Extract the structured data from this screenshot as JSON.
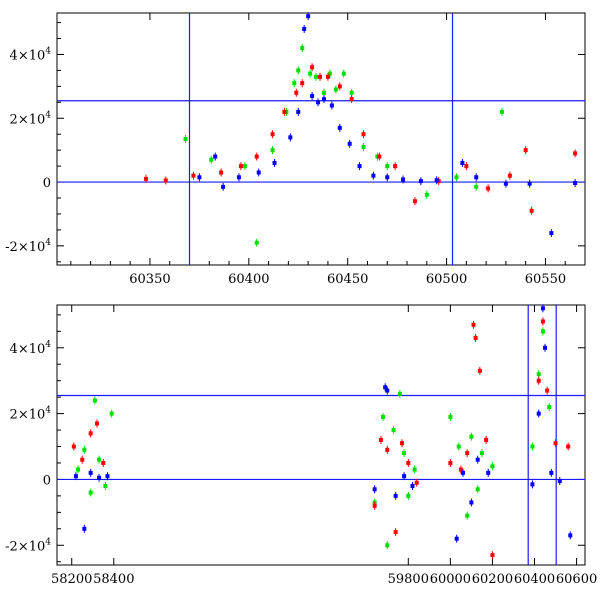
{
  "chart_data": [
    {
      "type": "scatter",
      "panel": "top",
      "xlim": [
        60303,
        60570
      ],
      "ylim": [
        -26000,
        53000
      ],
      "xticks": [
        60350,
        60400,
        60450,
        60500,
        60550
      ],
      "xtick_labels": [
        "60350",
        "60400",
        "60450",
        "60500",
        "60550"
      ],
      "yticks": [
        -20000,
        0,
        20000,
        40000
      ],
      "ytick_labels": [
        {
          "mant": "-2×10",
          "exp": "4"
        },
        {
          "mant": "0",
          "exp": ""
        },
        {
          "mant": "2×10",
          "exp": "4"
        },
        {
          "mant": "4×10",
          "exp": "4"
        }
      ],
      "hlines": [
        0,
        25500
      ],
      "vlines": [
        60370,
        60503
      ],
      "series_colors": [
        "#00e000",
        "#ff0000",
        "#0000ff"
      ],
      "series": [
        {
          "color": "#00e000",
          "x": [
            60368,
            60381,
            60398,
            60404,
            60412,
            60419,
            60423,
            60425,
            60427,
            60431,
            60434,
            60438,
            60441,
            60444,
            60448,
            60452,
            60458,
            60465,
            60470,
            60490,
            60505,
            60515,
            60528
          ],
          "y": [
            13500,
            7000,
            5000,
            -19000,
            10000,
            22000,
            31000,
            35000,
            42000,
            34000,
            33000,
            28000,
            34000,
            29000,
            34000,
            28000,
            11000,
            8000,
            5000,
            -4000,
            1500,
            -1500,
            22000
          ]
        },
        {
          "color": "#ff0000",
          "x": [
            60348,
            60358,
            60372,
            60386,
            60396,
            60404,
            60412,
            60418,
            60424,
            60427,
            60432,
            60436,
            60440,
            60446,
            60452,
            60458,
            60466,
            60474,
            60484,
            60496,
            60510,
            60521,
            60532,
            60540,
            60543,
            60565
          ],
          "y": [
            1000,
            500,
            2000,
            3000,
            5000,
            8000,
            15000,
            22000,
            28000,
            31000,
            36000,
            33000,
            33000,
            30000,
            26000,
            15000,
            8000,
            5000,
            -6000,
            300,
            5000,
            -2000,
            2000,
            10000,
            -9000,
            9000
          ]
        },
        {
          "color": "#0000ff",
          "x": [
            60375,
            60383,
            60387,
            60395,
            60405,
            60413,
            60421,
            60425,
            60428,
            60430,
            60432,
            60435,
            60438,
            60442,
            60446,
            60451,
            60456,
            60463,
            60470,
            60478,
            60487,
            60495,
            60508,
            60515,
            60530,
            60542,
            60553,
            60565
          ],
          "y": [
            1500,
            8000,
            -1500,
            1500,
            3000,
            6000,
            14000,
            22000,
            48000,
            52000,
            27000,
            25000,
            26000,
            24000,
            17000,
            12000,
            5000,
            2000,
            1500,
            800,
            300,
            600,
            6000,
            1500,
            -500,
            -500,
            -16000,
            -300
          ]
        }
      ]
    },
    {
      "type": "scatter",
      "panel": "bottom",
      "xlim": [
        58130,
        60640
      ],
      "ylim": [
        -26000,
        53000
      ],
      "xticks": [
        58200,
        58400,
        59800,
        60000,
        60200,
        60400,
        60600
      ],
      "xtick_labels": [
        "58200",
        "58400",
        "59800",
        "60000",
        "60200",
        "60400",
        "60600"
      ],
      "yticks": [
        -20000,
        0,
        20000,
        40000
      ],
      "ytick_labels": [
        {
          "mant": "-2×10",
          "exp": "4"
        },
        {
          "mant": "0",
          "exp": ""
        },
        {
          "mant": "2×10",
          "exp": "4"
        },
        {
          "mant": "4×10",
          "exp": "4"
        }
      ],
      "hlines": [
        0,
        25500
      ],
      "vlines": [
        60370,
        60503
      ],
      "series_colors": [
        "#00e000",
        "#ff0000",
        "#0000ff"
      ],
      "series": [
        {
          "color": "#00e000",
          "x": [
            58230,
            58260,
            58290,
            58310,
            58330,
            58360,
            58390,
            59640,
            59680,
            59700,
            59730,
            59760,
            59780,
            59800,
            59830,
            60000,
            60040,
            60080,
            60100,
            60130,
            60150,
            60200,
            60390,
            60420,
            60440,
            60470
          ],
          "y": [
            3000,
            9000,
            -4000,
            24000,
            6000,
            -2000,
            20000,
            -7000,
            19000,
            -20000,
            15000,
            26000,
            8000,
            -5000,
            3000,
            19000,
            10000,
            -11000,
            13000,
            -3000,
            8000,
            4000,
            10000,
            32000,
            45000,
            22000
          ]
        },
        {
          "color": "#ff0000",
          "x": [
            58210,
            58250,
            58290,
            58320,
            58350,
            59640,
            59670,
            59700,
            59740,
            59770,
            59800,
            59840,
            60000,
            60050,
            60080,
            60110,
            60120,
            60140,
            60170,
            60200,
            60420,
            60440,
            60460,
            60500,
            60560
          ],
          "y": [
            10000,
            6000,
            14000,
            17000,
            5000,
            -8000,
            12000,
            9000,
            -16000,
            11000,
            5000,
            -1000,
            5000,
            3000,
            8000,
            47000,
            43000,
            33000,
            12000,
            -23000,
            30000,
            48000,
            27000,
            11000,
            10000
          ]
        },
        {
          "color": "#0000ff",
          "x": [
            58220,
            58260,
            58290,
            58330,
            58370,
            59640,
            59690,
            59700,
            59740,
            59780,
            59820,
            60030,
            60060,
            60100,
            60130,
            60180,
            60390,
            60420,
            60440,
            60450,
            60480,
            60520,
            60570
          ],
          "y": [
            1000,
            -15000,
            2000,
            500,
            1000,
            -3000,
            28000,
            27000,
            -5000,
            1000,
            -2000,
            -18000,
            2000,
            -7000,
            6000,
            2000,
            -1500,
            20000,
            52000,
            40000,
            2000,
            -500,
            -17000
          ]
        }
      ]
    }
  ]
}
